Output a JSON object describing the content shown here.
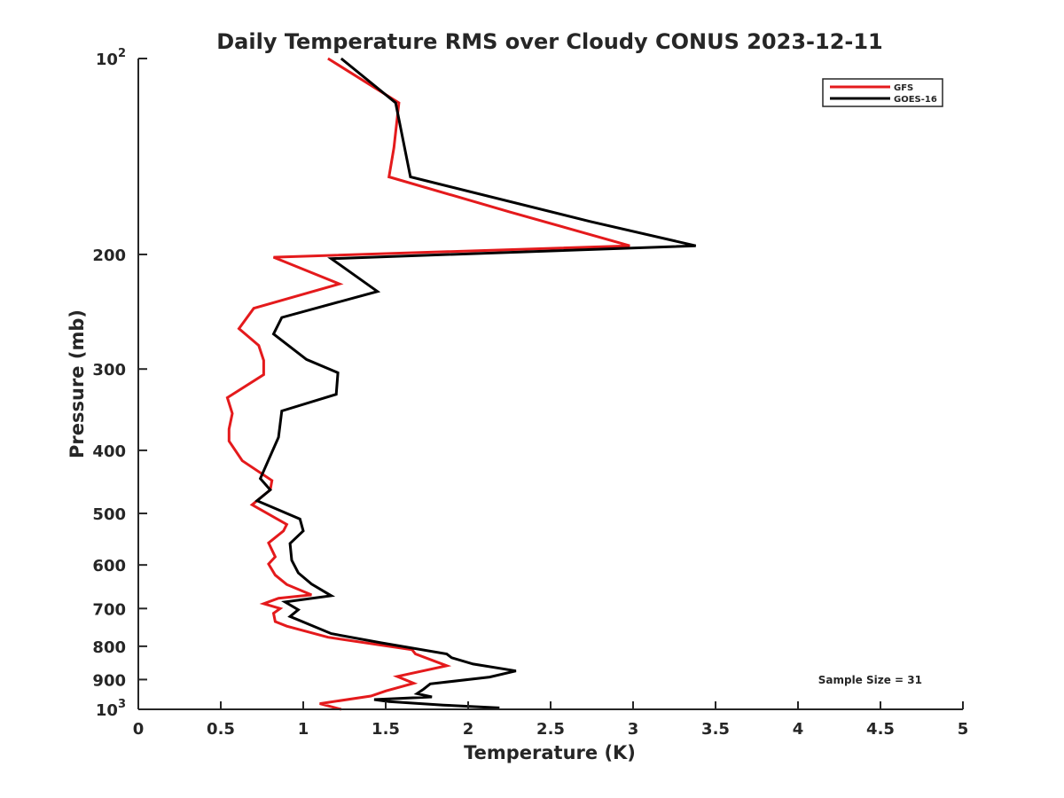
{
  "chart_data": {
    "type": "line",
    "title": "Daily Temperature RMS over Cloudy CONUS 2023-12-11",
    "xlabel": "Temperature (K)",
    "ylabel": "Pressure (mb)",
    "xlim": [
      0,
      5
    ],
    "ylim": [
      100,
      1000
    ],
    "y_scale": "log",
    "y_reversed": true,
    "grid": false,
    "legend_position": "top-right",
    "x_ticks": [
      0,
      0.5,
      1,
      1.5,
      2,
      2.5,
      3,
      3.5,
      4,
      4.5,
      5
    ],
    "x_tick_labels": [
      "0",
      "0.5",
      "1",
      "1.5",
      "2",
      "2.5",
      "3",
      "3.5",
      "4",
      "4.5",
      "5"
    ],
    "y_ticks": [
      {
        "value": 100,
        "base": "10",
        "exp": "2"
      },
      {
        "value": 200,
        "label": "200"
      },
      {
        "value": 300,
        "label": "300"
      },
      {
        "value": 400,
        "label": "400"
      },
      {
        "value": 500,
        "label": "500"
      },
      {
        "value": 600,
        "label": "600"
      },
      {
        "value": 700,
        "label": "700"
      },
      {
        "value": 800,
        "label": "800"
      },
      {
        "value": 900,
        "label": "900"
      },
      {
        "value": 1000,
        "base": "10",
        "exp": "3"
      }
    ],
    "annotation": "Sample Size = 31",
    "series": [
      {
        "name": "GFS",
        "color": "#e41a1c",
        "points": [
          [
            1.15,
            100
          ],
          [
            1.58,
            117
          ],
          [
            1.55,
            137
          ],
          [
            1.52,
            152
          ],
          [
            2.25,
            172
          ],
          [
            2.98,
            194
          ],
          [
            0.82,
            202
          ],
          [
            1.22,
            222
          ],
          [
            0.7,
            242
          ],
          [
            0.61,
            260
          ],
          [
            0.73,
            276
          ],
          [
            0.76,
            291
          ],
          [
            0.76,
            306
          ],
          [
            0.54,
            332
          ],
          [
            0.57,
            351
          ],
          [
            0.55,
            371
          ],
          [
            0.55,
            387
          ],
          [
            0.63,
            415
          ],
          [
            0.81,
            445
          ],
          [
            0.8,
            460
          ],
          [
            0.69,
            485
          ],
          [
            0.9,
            520
          ],
          [
            0.88,
            532
          ],
          [
            0.79,
            555
          ],
          [
            0.83,
            583
          ],
          [
            0.79,
            598
          ],
          [
            0.83,
            622
          ],
          [
            0.9,
            643
          ],
          [
            1.05,
            667
          ],
          [
            0.85,
            675
          ],
          [
            0.76,
            688
          ],
          [
            0.86,
            700
          ],
          [
            0.82,
            712
          ],
          [
            0.83,
            733
          ],
          [
            0.9,
            745
          ],
          [
            1.15,
            775
          ],
          [
            1.66,
            810
          ],
          [
            1.68,
            822
          ],
          [
            1.87,
            857
          ],
          [
            1.57,
            890
          ],
          [
            1.67,
            912
          ],
          [
            1.5,
            937
          ],
          [
            1.41,
            954
          ],
          [
            1.1,
            980
          ],
          [
            1.23,
            1000
          ]
        ]
      },
      {
        "name": "GOES-16",
        "color": "#000000",
        "points": [
          [
            1.23,
            100
          ],
          [
            1.56,
            117
          ],
          [
            1.65,
            152
          ],
          [
            2.74,
            178
          ],
          [
            3.38,
            194
          ],
          [
            1.17,
            203
          ],
          [
            1.45,
            228
          ],
          [
            0.87,
            250
          ],
          [
            0.82,
            265
          ],
          [
            1.02,
            290
          ],
          [
            1.21,
            304
          ],
          [
            1.2,
            328
          ],
          [
            0.87,
            348
          ],
          [
            0.85,
            382
          ],
          [
            0.74,
            442
          ],
          [
            0.8,
            460
          ],
          [
            0.72,
            478
          ],
          [
            0.98,
            510
          ],
          [
            1.0,
            532
          ],
          [
            0.92,
            556
          ],
          [
            0.93,
            590
          ],
          [
            0.97,
            617
          ],
          [
            1.05,
            642
          ],
          [
            1.17,
            669
          ],
          [
            0.89,
            684
          ],
          [
            0.97,
            703
          ],
          [
            0.92,
            720
          ],
          [
            1.01,
            736
          ],
          [
            1.17,
            765
          ],
          [
            1.47,
            790
          ],
          [
            1.87,
            822
          ],
          [
            1.9,
            833
          ],
          [
            2.03,
            852
          ],
          [
            2.29,
            873
          ],
          [
            2.13,
            892
          ],
          [
            1.77,
            914
          ],
          [
            1.73,
            931
          ],
          [
            1.69,
            946
          ],
          [
            1.78,
            957
          ],
          [
            1.43,
            966
          ],
          [
            1.52,
            973
          ],
          [
            1.85,
            985
          ],
          [
            2.19,
            995
          ]
        ]
      }
    ]
  }
}
